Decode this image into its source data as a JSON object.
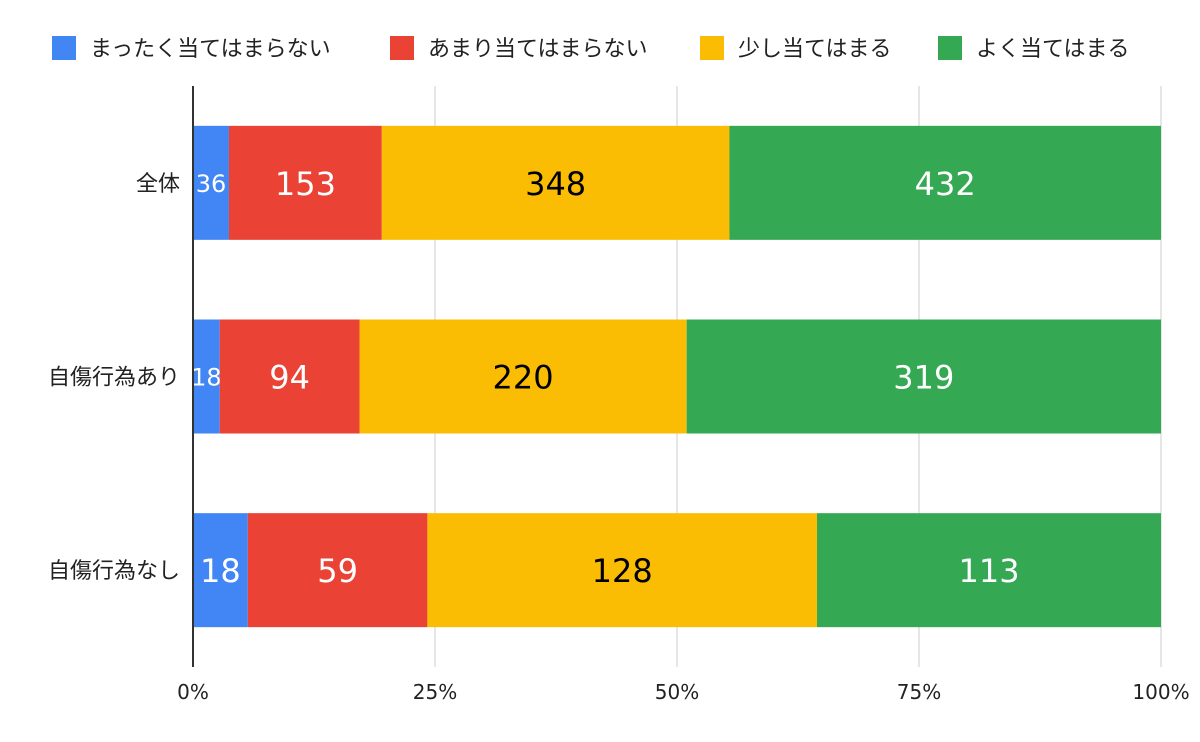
{
  "chart_data": {
    "type": "bar",
    "orientation": "horizontal",
    "stacking": "percent",
    "categories": [
      "全体",
      "自傷行為あり",
      "自傷行為なし"
    ],
    "series": [
      {
        "name": "まったく当てはまらない",
        "color": "#4285F4",
        "label_color": "#ffffff",
        "values": [
          36,
          18,
          18
        ]
      },
      {
        "name": "あまり当てはまらない",
        "color": "#EA4335",
        "label_color": "#ffffff",
        "values": [
          153,
          94,
          59
        ]
      },
      {
        "name": "少し当てはまる",
        "color": "#FBBC04",
        "label_color": "#000000",
        "values": [
          348,
          220,
          128
        ]
      },
      {
        "name": "よく当てはまる",
        "color": "#34A853",
        "label_color": "#ffffff",
        "values": [
          432,
          319,
          113
        ]
      }
    ],
    "x_ticks": [
      "0%",
      "25%",
      "50%",
      "75%",
      "100%"
    ],
    "xlim": [
      0,
      100
    ],
    "grid": true,
    "legend_position": "top"
  }
}
